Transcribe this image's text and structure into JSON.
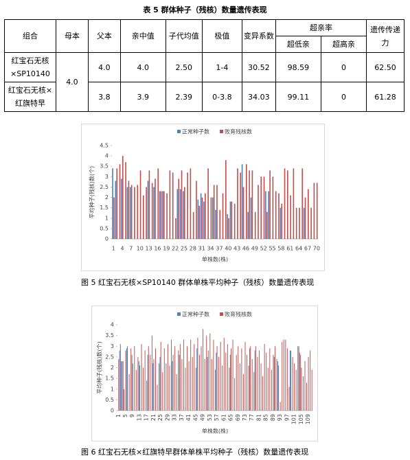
{
  "table": {
    "title": "表 5  群体种子（残核）数量遗传表现",
    "headers": [
      "组合",
      "母本",
      "父本",
      "亲中值",
      "子代均值",
      "极值",
      "变异系数",
      "超亲率",
      "遗传传递力"
    ],
    "subheaders": [
      "超低亲",
      "超高亲"
    ],
    "mother": "4.0",
    "rows": [
      [
        "红宝石无核×SP10140",
        "4.0",
        "4.0",
        "2.50",
        "1-4",
        "30.52",
        "98.59",
        "0",
        "62.50"
      ],
      [
        "红宝石无核×红旗特早",
        "3.8",
        "3.9",
        "2.39",
        "0-3.8",
        "34.03",
        "99.11",
        "0",
        "61.28"
      ]
    ]
  },
  "chart_data": [
    {
      "type": "bar",
      "caption": "图 5    红宝石无核×SP10140 群体单株平均种子（残核）数量遗传表现",
      "x_label": "单株数(株)",
      "y_label": "平均种子(残核)数(个)",
      "categories": [
        "1",
        null,
        null,
        "4",
        null,
        null,
        "7",
        null,
        null,
        "10",
        null,
        null,
        "13",
        null,
        null,
        "16",
        null,
        null,
        "19",
        null,
        null,
        "22",
        null,
        null,
        "25",
        null,
        null,
        "28",
        null,
        null,
        "31",
        null,
        null,
        "34",
        null,
        null,
        "37",
        null,
        null,
        "40",
        null,
        null,
        "43",
        null,
        null,
        "46",
        null,
        null,
        "49",
        null,
        null,
        "52",
        null,
        null,
        "55",
        null,
        null,
        "58",
        null,
        null,
        "61",
        null,
        null,
        "64",
        null,
        null,
        "67",
        null,
        null,
        "70"
      ],
      "series": [
        {
          "name": "正常种子数",
          "color": "#4f81bd",
          "values": [
            3.4,
            2.8,
            0,
            2.9,
            0,
            2.5,
            2.5,
            0,
            0,
            0,
            0,
            0,
            2.8,
            0,
            2.5,
            0,
            2.3,
            2.3,
            0,
            0,
            0,
            0,
            2.4,
            2.4,
            2.3,
            0,
            0,
            0,
            0,
            1.9,
            2.2,
            1.8,
            0,
            0,
            2.0,
            1.4,
            0,
            0,
            0,
            1.2,
            1.8,
            0,
            0,
            0,
            3.6,
            0,
            1.3,
            2.0,
            0,
            0,
            0,
            0,
            2.3,
            2.3,
            0,
            0,
            0,
            1.5,
            0,
            0,
            0,
            0,
            0,
            0,
            0,
            1.5,
            0,
            0,
            0,
            0
          ]
        },
        {
          "name": "败育残核数",
          "color": "#c0504d",
          "values": [
            2.0,
            3.4,
            3.6,
            4.0,
            3.7,
            2.8,
            2.6,
            2.5,
            2.6,
            3.3,
            2.1,
            2.5,
            3.3,
            2.7,
            2.9,
            3.4,
            2.3,
            2.3,
            2.2,
            3.3,
            3.2,
            1.0,
            2.9,
            3.3,
            2.5,
            3.2,
            3.4,
            1.3,
            2.8,
            1.6,
            2.0,
            2.2,
            3.4,
            2.0,
            2.6,
            2.6,
            1.4,
            2.2,
            3.8,
            1.0,
            1.8,
            1.7,
            3.4,
            3.2,
            2.5,
            3.6,
            3.3,
            3.3,
            1.3,
            2.6,
            3.0,
            3.0,
            1.3,
            3.3,
            3.0,
            2.3,
            2.2,
            1.7,
            3.4,
            3.3,
            2.1,
            3.4,
            1.5,
            1.5,
            3.4,
            2.0,
            2.4,
            1.5,
            2.7,
            2.7
          ]
        }
      ],
      "ylim": [
        0,
        4.5
      ],
      "yticks": [
        0,
        0.5,
        1,
        1.5,
        2,
        2.5,
        3,
        3.5,
        4,
        4.5
      ]
    },
    {
      "type": "bar",
      "caption": "图 6    红宝石无核×红旗特早群体单株平均种子（残核）数量遗传表现",
      "x_label": "单株数(株)",
      "y_label": "平均种子(残核)数(个)",
      "categories": [
        "1",
        null,
        null,
        null,
        "5",
        null,
        null,
        null,
        "9",
        null,
        null,
        null,
        "13",
        null,
        null,
        null,
        "17",
        null,
        null,
        null,
        "21",
        null,
        null,
        null,
        "25",
        null,
        null,
        null,
        "29",
        null,
        null,
        null,
        "33",
        null,
        null,
        null,
        "37",
        null,
        null,
        null,
        "41",
        null,
        null,
        null,
        "45",
        null,
        null,
        null,
        "49",
        null,
        null,
        null,
        "53",
        null,
        null,
        null,
        "57",
        null,
        null,
        null,
        "61",
        null,
        null,
        null,
        "65",
        null,
        null,
        null,
        "69",
        null,
        null,
        null,
        "73",
        null,
        null,
        null,
        "77",
        null,
        null,
        null,
        "81",
        null,
        null,
        null,
        "85",
        null,
        null,
        null,
        "89",
        null,
        null,
        null,
        "93",
        null,
        null,
        null,
        "97",
        null,
        null,
        null,
        "101",
        null,
        null,
        null,
        "105",
        null,
        null,
        null,
        "109",
        null,
        null
      ],
      "series": [
        {
          "name": "正常种子数",
          "color": "#4f81bd",
          "values": [
            0,
            2.8,
            2.3,
            2.3,
            0,
            2.9,
            0,
            0,
            2.6,
            0,
            0,
            0,
            2.3,
            0,
            0,
            0,
            0,
            2.6,
            0,
            0,
            2.2,
            0,
            0,
            0,
            2.5,
            0,
            0,
            0,
            0,
            0,
            0,
            2.3,
            0,
            0,
            0,
            2.6,
            0,
            0,
            0,
            0,
            0,
            0,
            0,
            0,
            0,
            2.9,
            0,
            0,
            0,
            0,
            0,
            2.5,
            0,
            0,
            0,
            0,
            2.7,
            0,
            0,
            0,
            0,
            0,
            0,
            0,
            2.6,
            0,
            0,
            0,
            0,
            0,
            0,
            0,
            0,
            0,
            0,
            2.9,
            0,
            0,
            2.8,
            0,
            0,
            0,
            0,
            0,
            0,
            0,
            0,
            0,
            0,
            2.5,
            0,
            2.3,
            0,
            0,
            0,
            0,
            0,
            0,
            2.8,
            0,
            0,
            0,
            0,
            3.0,
            2.6,
            0,
            0,
            0,
            0,
            0,
            0
          ]
        },
        {
          "name": "败育残核数",
          "color": "#c0504d",
          "values": [
            2.4,
            3.1,
            2.3,
            1.0,
            2.8,
            3.0,
            1.7,
            2.9,
            2.2,
            3.0,
            1.9,
            2.5,
            2.1,
            3.1,
            2.0,
            2.8,
            1.4,
            3.0,
            2.6,
            3.5,
            2.4,
            2.9,
            1.2,
            2.2,
            3.2,
            1.8,
            2.9,
            2.2,
            3.1,
            2.1,
            3.3,
            2.6,
            3.0,
            1.7,
            2.8,
            3.1,
            2.4,
            3.3,
            2.0,
            3.0,
            2.3,
            3.3,
            2.5,
            3.1,
            2.0,
            3.4,
            2.6,
            3.0,
            3.8,
            2.4,
            3.5,
            2.8,
            3.6,
            2.4,
            3.3,
            1.9,
            3.0,
            2.5,
            3.2,
            2.1,
            3.4,
            2.7,
            3.1,
            2.0,
            2.9,
            3.3,
            1.5,
            2.6,
            3.0,
            2.2,
            2.9,
            1.7,
            3.2,
            2.6,
            2.1,
            3.0,
            2.4,
            1.8,
            3.0,
            2.5,
            2.8,
            2.2,
            1.6,
            3.1,
            2.7,
            2.0,
            2.9,
            1.9,
            2.6,
            3.0,
            2.4,
            2.1,
            0.4,
            3.2,
            3.3,
            3.3,
            2.9,
            1.1,
            2.8,
            2.5,
            2.2,
            1.9,
            3.0,
            2.7,
            2.0,
            1.6,
            2.3,
            1.3,
            2.5,
            2.8,
            1.9
          ]
        }
      ],
      "ylim": [
        0,
        4
      ],
      "yticks": [
        0,
        0.5,
        1,
        1.5,
        2,
        2.5,
        3,
        3.5,
        4
      ]
    }
  ]
}
